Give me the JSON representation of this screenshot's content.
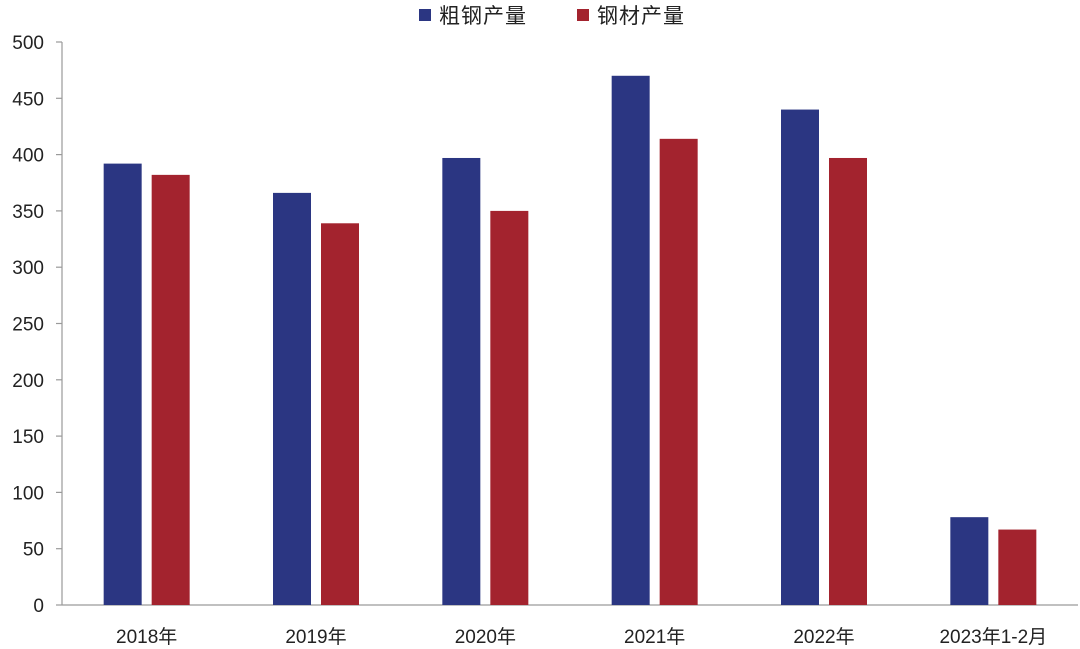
{
  "chart_data": {
    "type": "bar",
    "categories": [
      "2018年",
      "2019年",
      "2020年",
      "2021年",
      "2022年",
      "2023年1-2月"
    ],
    "series": [
      {
        "name": "粗钢产量",
        "color": "#2b3682",
        "values": [
          392,
          366,
          397,
          470,
          440,
          78
        ]
      },
      {
        "name": "钢材产量",
        "color": "#a3232e",
        "values": [
          382,
          339,
          350,
          414,
          397,
          67
        ]
      }
    ],
    "yticks": [
      0,
      50,
      100,
      150,
      200,
      250,
      300,
      350,
      400,
      450,
      500
    ],
    "ylim": [
      0,
      500
    ],
    "legend_position": "top-center",
    "grid": false
  }
}
